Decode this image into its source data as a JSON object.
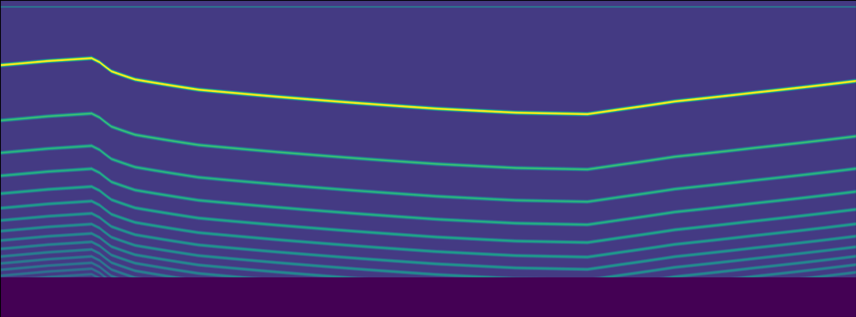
{
  "chart_data": {
    "type": "spectrogram",
    "tick_labels": false,
    "log": "y",
    "xlim": [
      0,
      1078
    ],
    "ylim": [
      5000,
      95
    ],
    "xticks": [],
    "yticks": [],
    "color": "viridis",
    "clim": [
      0,
      1
    ],
    "floor": 0.17,
    "cutoff": 3050,
    "cutoff_level": 0.0,
    "harmonic_levels": [
      1.0,
      0.62,
      0.58,
      0.56,
      0.52,
      0.48,
      0.45,
      0.42,
      0.4,
      0.38,
      0.36,
      0.34,
      0.32,
      0.3,
      0.28
    ],
    "tone": {
      "frequency": 103,
      "level": 0.45
    },
    "f0": {
      "x": [
        0,
        60,
        115,
        125,
        140,
        170,
        250,
        350,
        450,
        550,
        650,
        740,
        780,
        850,
        950,
        1078
      ],
      "values": [
        214,
        203,
        196,
        206,
        231,
        256,
        291,
        318,
        344,
        369,
        388,
        395,
        373,
        337,
        302,
        261
      ]
    }
  }
}
